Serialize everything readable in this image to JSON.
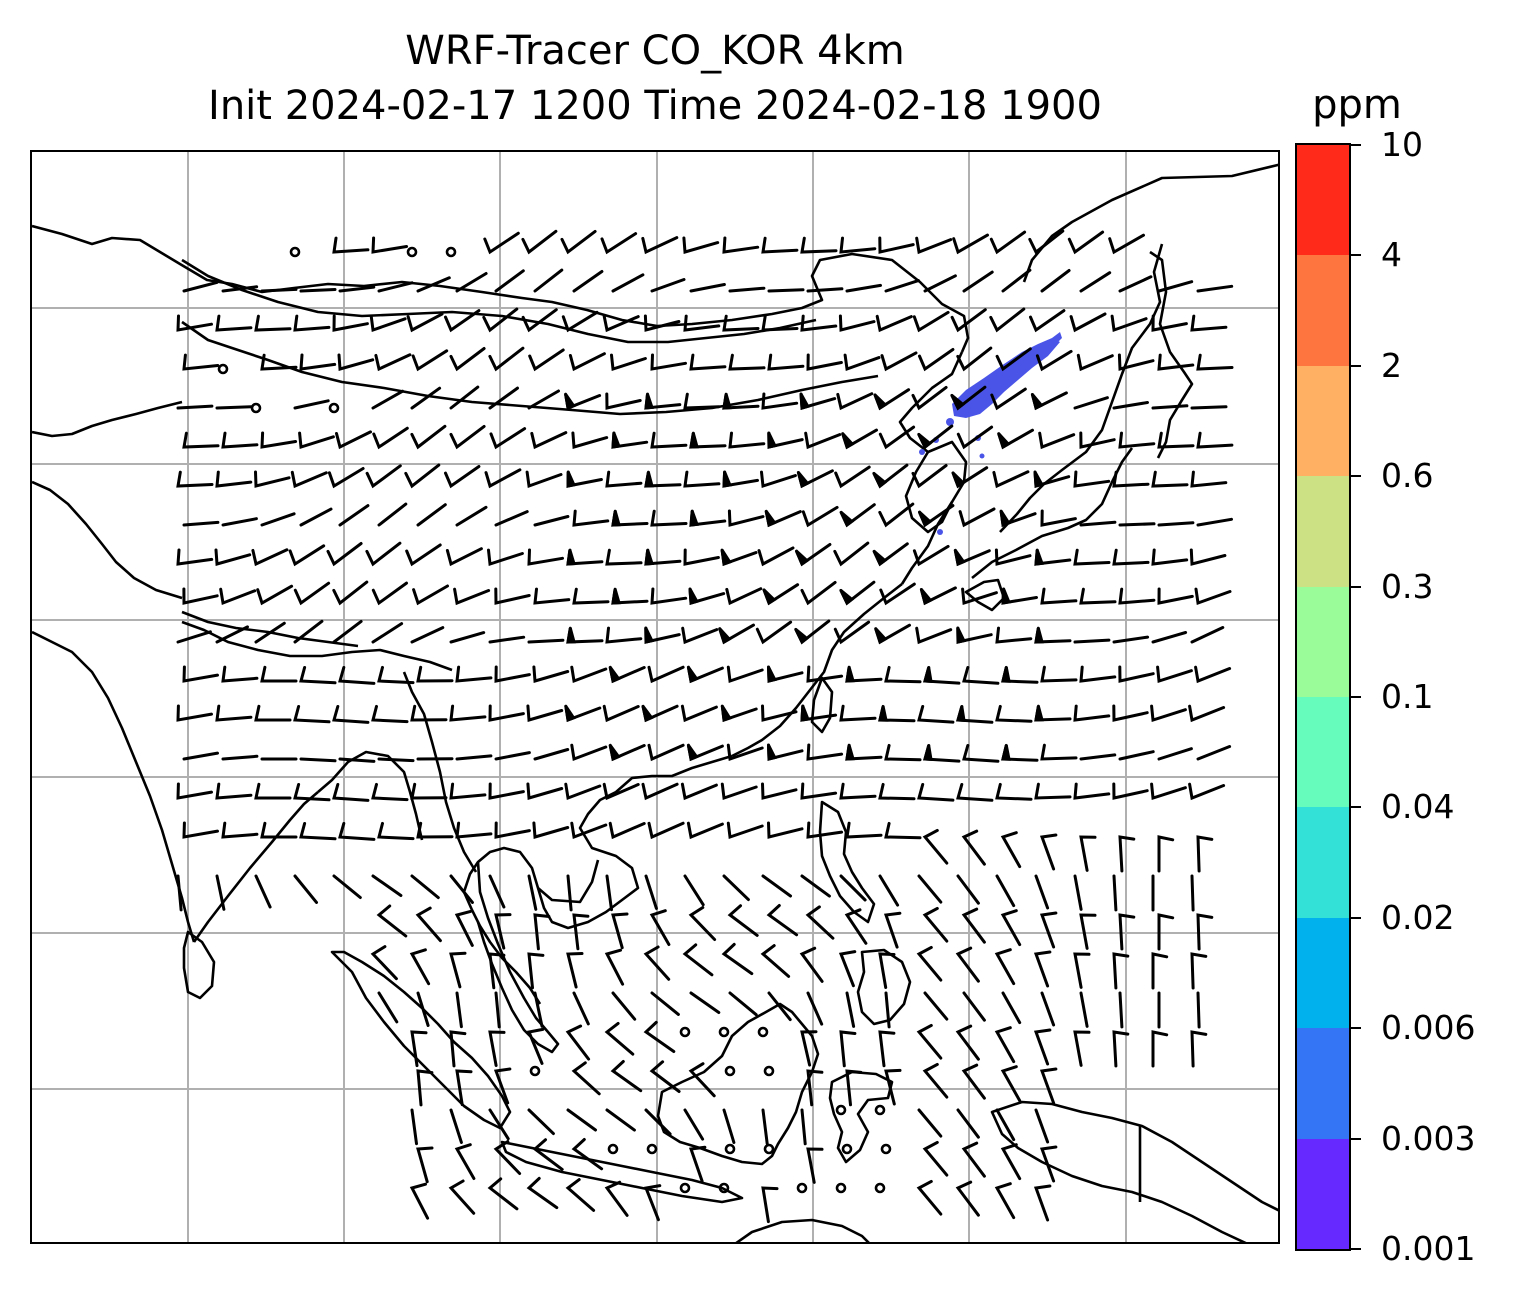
{
  "title": {
    "line1": "WRF-Tracer CO_KOR 4km",
    "line2": "Init 2024-02-17 1200 Time 2024-02-18 1900"
  },
  "colorbar": {
    "unit": "ppm",
    "ticks": [
      "0.001",
      "0.003",
      "0.006",
      "0.02",
      "0.04",
      "0.1",
      "0.3",
      "0.6",
      "2",
      "4",
      "10"
    ],
    "colors": [
      "#6629ff",
      "#3375f5",
      "#00b1ed",
      "#33e1d7",
      "#66fcbc",
      "#99fc99",
      "#cce084",
      "#ffb062",
      "#ff7540",
      "#ff2a1a"
    ]
  },
  "map": {
    "gridlines": true,
    "grid_color": "#b0b0b0",
    "coastline_color": "#000000",
    "plume_color": "#4a55e8",
    "field_max_class": "0.003-0.006"
  }
}
